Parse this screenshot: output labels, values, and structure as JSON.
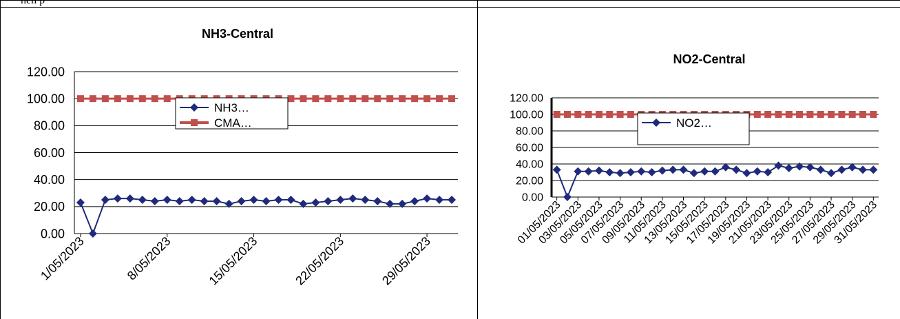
{
  "header": {
    "text": "hen p"
  },
  "colors": {
    "nh3": "#1f2a7a",
    "no2": "#1f2a7a",
    "cma": "#c0504d"
  },
  "chart_data": [
    {
      "type": "line",
      "title": "NH3-Central",
      "ylim": [
        0,
        120
      ],
      "yticks": [
        "0.00",
        "20.00",
        "40.00",
        "60.00",
        "80.00",
        "100.00",
        "120.00"
      ],
      "xtick_labels": [
        "1/05/2023",
        "8/05/2023",
        "15/05/2023",
        "22/05/2023",
        "29/05/2023"
      ],
      "x": [
        "1/05/2023",
        "2/05/2023",
        "3/05/2023",
        "4/05/2023",
        "5/05/2023",
        "6/05/2023",
        "7/05/2023",
        "8/05/2023",
        "9/05/2023",
        "10/05/2023",
        "11/05/2023",
        "12/05/2023",
        "13/05/2023",
        "14/05/2023",
        "15/05/2023",
        "16/05/2023",
        "17/05/2023",
        "18/05/2023",
        "19/05/2023",
        "20/05/2023",
        "21/05/2023",
        "22/05/2023",
        "23/05/2023",
        "24/05/2023",
        "25/05/2023",
        "26/05/2023",
        "27/05/2023",
        "28/05/2023",
        "29/05/2023",
        "30/05/2023",
        "31/05/2023"
      ],
      "series": [
        {
          "name": "NH3…",
          "values": [
            23,
            0,
            25,
            26,
            26,
            25,
            24,
            25,
            24,
            25,
            24,
            24,
            22,
            24,
            25,
            24,
            25,
            25,
            22,
            23,
            24,
            25,
            26,
            25,
            24,
            22,
            22,
            24,
            26,
            25,
            25
          ]
        },
        {
          "name": "CMA…",
          "values": [
            100,
            100,
            100,
            100,
            100,
            100,
            100,
            100,
            100,
            100,
            100,
            100,
            100,
            100,
            100,
            100,
            100,
            100,
            100,
            100,
            100,
            100,
            100,
            100,
            100,
            100,
            100,
            100,
            100,
            100,
            100
          ]
        }
      ],
      "legend": "center-top"
    },
    {
      "type": "line",
      "title": "NO2-Central",
      "ylim": [
        0,
        120
      ],
      "yticks": [
        "0.00",
        "20.00",
        "40.00",
        "60.00",
        "80.00",
        "100.00",
        "120.00"
      ],
      "xtick_labels": [
        "01/05/2023",
        "03/05/2023",
        "05/05/2023",
        "07/05/2023",
        "09/05/2023",
        "11/05/2023",
        "13/05/2023",
        "15/05/2023",
        "17/05/2023",
        "19/05/2023",
        "21/05/2023",
        "23/05/2023",
        "25/05/2023",
        "27/05/2023",
        "29/05/2023",
        "31/05/2023"
      ],
      "x": [
        "01/05/2023",
        "02/05/2023",
        "03/05/2023",
        "04/05/2023",
        "05/05/2023",
        "06/05/2023",
        "07/05/2023",
        "08/05/2023",
        "09/05/2023",
        "10/05/2023",
        "11/05/2023",
        "12/05/2023",
        "13/05/2023",
        "14/05/2023",
        "15/05/2023",
        "16/05/2023",
        "17/05/2023",
        "18/05/2023",
        "19/05/2023",
        "20/05/2023",
        "21/05/2023",
        "22/05/2023",
        "23/05/2023",
        "24/05/2023",
        "25/05/2023",
        "26/05/2023",
        "27/05/2023",
        "28/05/2023",
        "29/05/2023",
        "30/05/2023",
        "31/05/2023"
      ],
      "series": [
        {
          "name": "NO2…",
          "values": [
            33,
            0,
            31,
            31,
            32,
            30,
            29,
            30,
            31,
            30,
            32,
            33,
            33,
            29,
            31,
            31,
            36,
            33,
            29,
            31,
            30,
            38,
            35,
            37,
            36,
            33,
            29,
            33,
            36,
            33,
            33
          ]
        },
        {
          "name": "",
          "values": [
            100,
            100,
            100,
            100,
            100,
            100,
            100,
            100,
            100,
            100,
            100,
            100,
            100,
            100,
            100,
            100,
            100,
            100,
            100,
            100,
            100,
            100,
            100,
            100,
            100,
            100,
            100,
            100,
            100,
            100,
            100
          ]
        }
      ],
      "legend": "center"
    }
  ]
}
